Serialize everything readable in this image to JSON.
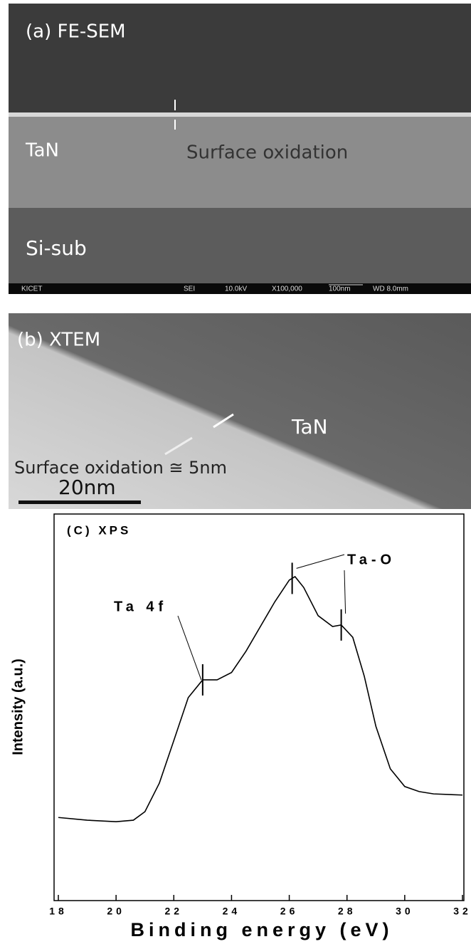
{
  "panel_a": {
    "label": "(a) FE-SEM",
    "top_layer": "TaN",
    "annotation": "Surface oxidation",
    "bottom_layer": "Si-sub",
    "footer": [
      "KICET",
      "SEI",
      "10.0kV",
      "X100,000",
      "100nm",
      "WD 8.0mm"
    ]
  },
  "panel_b": {
    "label": "(b) XTEM",
    "layer": "TaN",
    "annotation": "Surface oxidation ≅ 5nm",
    "scale_bar": "20nm"
  },
  "chart_data": {
    "type": "line",
    "title": "(C)  XPS",
    "x_label": "Binding energy (eV)",
    "y_label": "Intensity (a.u.)",
    "x": [
      18,
      19,
      20,
      20.6,
      21,
      21.5,
      22,
      22.5,
      23,
      23.5,
      24,
      24.5,
      25,
      25.5,
      26,
      26.2,
      26.5,
      27,
      27.5,
      27.8,
      28.2,
      28.6,
      29,
      29.5,
      30,
      30.5,
      31,
      32
    ],
    "values": [
      21.5,
      20.8,
      20.4,
      20.8,
      23,
      30.4,
      41.4,
      52.5,
      57.1,
      57.1,
      59,
      64.5,
      70.9,
      77.3,
      82.9,
      83.8,
      81,
      73.7,
      70.9,
      71.3,
      68.1,
      58,
      45.1,
      34.1,
      29.5,
      28.2,
      27.6,
      27.3
    ],
    "color": "#000000",
    "xlim": [
      18,
      32
    ],
    "ylim": [
      0,
      100
    ],
    "xticks": [
      18,
      20,
      22,
      24,
      26,
      28,
      30,
      32
    ],
    "annotations": [
      {
        "text": "Ta 4f",
        "x": [
          23
        ]
      },
      {
        "text": "Ta-O",
        "x": [
          26.1,
          27.8
        ]
      }
    ]
  }
}
